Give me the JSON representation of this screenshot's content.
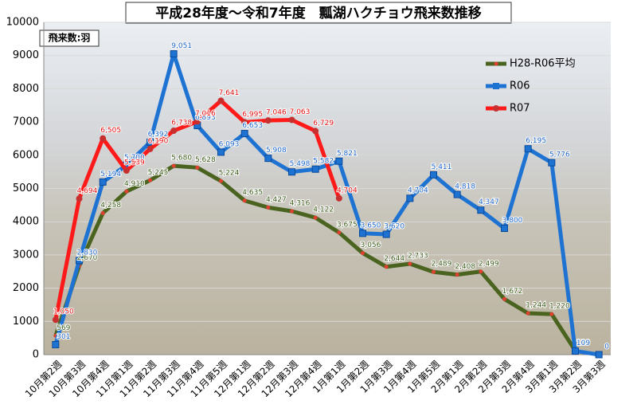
{
  "chart_data": {
    "type": "line",
    "title": "平成28年度～令和7年度　瓢湖ハクチョウ飛来数推移",
    "annotation": "飛来数:羽",
    "categories": [
      "10月第2週",
      "10月第3週",
      "10月第4週",
      "11月第1週",
      "11月第2週",
      "11月第3週",
      "11月第4週",
      "11月第5週",
      "12月第1週",
      "12月第2週",
      "12月第3週",
      "12月第4週",
      "1月第1週",
      "1月第2週",
      "1月第3週",
      "1月第4週",
      "1月第5週",
      "2月第1週",
      "2月第2週",
      "2月第3週",
      "2月第4週",
      "3月第1週",
      "3月第2週",
      "3月第3週"
    ],
    "series": [
      {
        "name": "H28-R06平均",
        "color": "#4a6420",
        "label_color": "#3d5a1a",
        "marker_color": "#e04030",
        "values": [
          569,
          2670,
          4258,
          4910,
          5245,
          5680,
          5628,
          5224,
          4635,
          4427,
          4316,
          4122,
          3675,
          3056,
          2644,
          2733,
          2489,
          2408,
          2499,
          1672,
          1244,
          1220,
          120,
          null
        ],
        "value_labels": [
          "569",
          "2,670",
          "4,258",
          "4,910",
          "5,245",
          "5,680",
          "5,628",
          "5,224",
          "4,635",
          "4,427",
          "4,316",
          "4,122",
          "3,675",
          "3,056",
          "2,644",
          "2,733",
          "2,489",
          "2,408",
          "2,499",
          "1,672",
          "1,244",
          "1,220",
          "120",
          null
        ]
      },
      {
        "name": "R06",
        "color": "#1e73d2",
        "label_color": "#1e64c8",
        "marker_color": "#1e73d2",
        "values": [
          301,
          2830,
          5194,
          5700,
          6392,
          9051,
          6893,
          6093,
          6653,
          5908,
          5498,
          5582,
          5821,
          3650,
          3620,
          4704,
          5411,
          4818,
          4347,
          3800,
          6195,
          5776,
          109,
          0
        ],
        "value_labels": [
          "301",
          "2,830",
          "5,194",
          "5,700",
          "6,392",
          "9,051",
          "6,893",
          "6,093",
          "6,653",
          "5,908",
          "5,498",
          "5,582",
          "5,821",
          "3,650",
          "3,620",
          "4,704",
          "5,411",
          "4,818",
          "4,347",
          "3,800",
          "6,195",
          "5,776",
          "109",
          "0"
        ]
      },
      {
        "name": "R07",
        "color": "#ff1a1a",
        "label_color": "#e01010",
        "marker_color": "#c83030",
        "values": [
          1050,
          4694,
          6505,
          5539,
          6190,
          6738,
          7016,
          7641,
          6995,
          7046,
          7063,
          6729,
          4704,
          null,
          null,
          null,
          null,
          null,
          null,
          null,
          null,
          null,
          null,
          null
        ],
        "value_labels": [
          "1,050",
          "4,694",
          "6,505",
          "5,539",
          "6,190",
          "6,738",
          "7,016",
          "7,641",
          "6,995",
          "7,046",
          "7,063",
          "6,729",
          "4,704",
          null,
          null,
          null,
          null,
          null,
          null,
          null,
          null,
          null,
          null,
          null
        ]
      }
    ],
    "ylim": [
      0,
      10000
    ],
    "yticks": [
      0,
      1000,
      2000,
      3000,
      4000,
      5000,
      6000,
      7000,
      8000,
      9000,
      10000
    ],
    "grid": true,
    "legend": "upper right"
  }
}
